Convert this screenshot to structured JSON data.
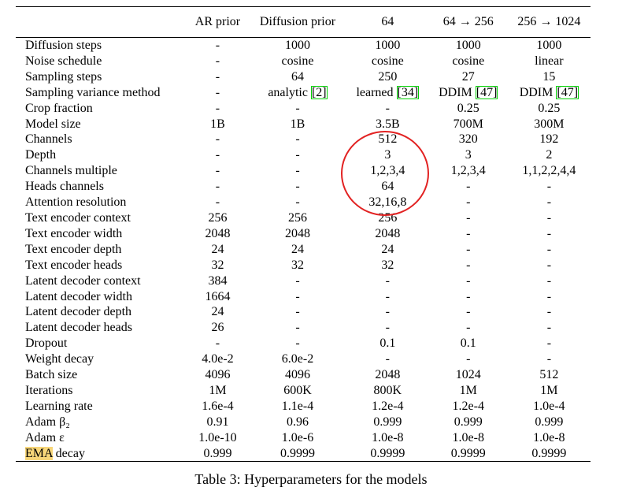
{
  "table": {
    "columns": [
      "",
      "AR prior",
      "Diffusion prior",
      "64",
      "64 → 256",
      "256 → 1024"
    ],
    "rows": [
      [
        "Diffusion steps",
        "-",
        "1000",
        "1000",
        "1000",
        "1000"
      ],
      [
        "Noise schedule",
        "-",
        "cosine",
        "cosine",
        "cosine",
        "linear"
      ],
      [
        "Sampling steps",
        "-",
        "64",
        "250",
        "27",
        "15"
      ],
      [
        "Sampling variance method",
        "-",
        "analytic [2]",
        "learned [34]",
        "DDIM [47]",
        "DDIM [47]"
      ],
      [
        "Crop fraction",
        "-",
        "-",
        "-",
        "0.25",
        "0.25"
      ],
      [
        "Model size",
        "1B",
        "1B",
        "3.5B",
        "700M",
        "300M"
      ],
      [
        "Channels",
        "-",
        "-",
        "512",
        "320",
        "192"
      ],
      [
        "Depth",
        "-",
        "-",
        "3",
        "3",
        "2"
      ],
      [
        "Channels multiple",
        "-",
        "-",
        "1,2,3,4",
        "1,2,3,4",
        "1,1,2,2,4,4"
      ],
      [
        "Heads channels",
        "-",
        "-",
        "64",
        "-",
        "-"
      ],
      [
        "Attention resolution",
        "-",
        "-",
        "32,16,8",
        "-",
        "-"
      ],
      [
        "Text encoder context",
        "256",
        "256",
        "256",
        "-",
        "-"
      ],
      [
        "Text encoder width",
        "2048",
        "2048",
        "2048",
        "-",
        "-"
      ],
      [
        "Text encoder depth",
        "24",
        "24",
        "24",
        "-",
        "-"
      ],
      [
        "Text encoder heads",
        "32",
        "32",
        "32",
        "-",
        "-"
      ],
      [
        "Latent decoder context",
        "384",
        "-",
        "-",
        "-",
        "-"
      ],
      [
        "Latent decoder width",
        "1664",
        "-",
        "-",
        "-",
        "-"
      ],
      [
        "Latent decoder depth",
        "24",
        "-",
        "-",
        "-",
        "-"
      ],
      [
        "Latent decoder heads",
        "26",
        "-",
        "-",
        "-",
        "-"
      ],
      [
        "Dropout",
        "-",
        "-",
        "0.1",
        "0.1",
        "-"
      ],
      [
        "Weight decay",
        "4.0e-2",
        "6.0e-2",
        "-",
        "-",
        "-"
      ],
      [
        "Batch size",
        "4096",
        "4096",
        "2048",
        "1024",
        "512"
      ],
      [
        "Iterations",
        "1M",
        "600K",
        "800K",
        "1M",
        "1M"
      ],
      [
        "Learning rate",
        "1.6e-4",
        "1.1e-4",
        "1.2e-4",
        "1.2e-4",
        "1.0e-4"
      ],
      [
        "Adam β₂",
        "0.91",
        "0.96",
        "0.999",
        "0.999",
        "0.999"
      ],
      [
        "Adam ε",
        "1.0e-10",
        "1.0e-6",
        "1.0e-8",
        "1.0e-8",
        "1.0e-8"
      ],
      [
        "EMA decay",
        "0.999",
        "0.9999",
        "0.9999",
        "0.9999",
        "0.9999"
      ]
    ],
    "highlighted_word": "EMA"
  },
  "caption": "Table 3: Hyperparameters for the models",
  "annotation": {
    "color": "#e22222",
    "shape": "circle"
  }
}
